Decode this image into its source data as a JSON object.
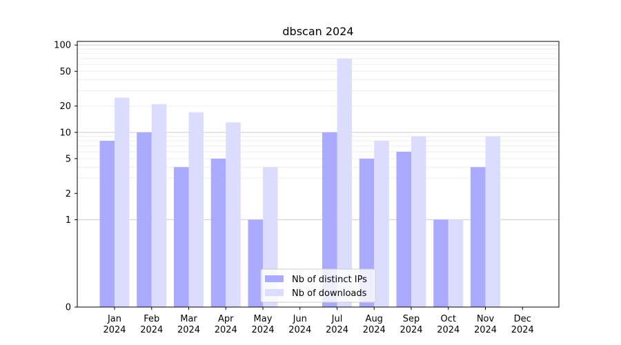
{
  "chart_data": {
    "type": "bar",
    "title": "dbscan 2024",
    "xlabel": "",
    "ylabel": "",
    "y_scale": "symlog",
    "ylim": [
      0,
      110
    ],
    "y_ticks": [
      0,
      1,
      2,
      5,
      10,
      20,
      50,
      100
    ],
    "y_tick_labels": [
      "0",
      "1",
      "2",
      "5",
      "10",
      "20",
      "50",
      "100"
    ],
    "grid": "horizontal",
    "legend_position": "bottom-center",
    "categories": [
      [
        "Jan",
        "2024"
      ],
      [
        "Feb",
        "2024"
      ],
      [
        "Mar",
        "2024"
      ],
      [
        "Apr",
        "2024"
      ],
      [
        "May",
        "2024"
      ],
      [
        "Jun",
        "2024"
      ],
      [
        "Jul",
        "2024"
      ],
      [
        "Aug",
        "2024"
      ],
      [
        "Sep",
        "2024"
      ],
      [
        "Oct",
        "2024"
      ],
      [
        "Nov",
        "2024"
      ],
      [
        "Dec",
        "2024"
      ]
    ],
    "series": [
      {
        "name": "Nb of distinct IPs",
        "color": "#aaaaff",
        "values": [
          8,
          10,
          4,
          5,
          1,
          0,
          10,
          5,
          6,
          1,
          4,
          0
        ]
      },
      {
        "name": "Nb of downloads",
        "color": "#dcdcff",
        "values": [
          25,
          21,
          17,
          13,
          4,
          0,
          70,
          8,
          9,
          1,
          9,
          0
        ]
      }
    ]
  }
}
